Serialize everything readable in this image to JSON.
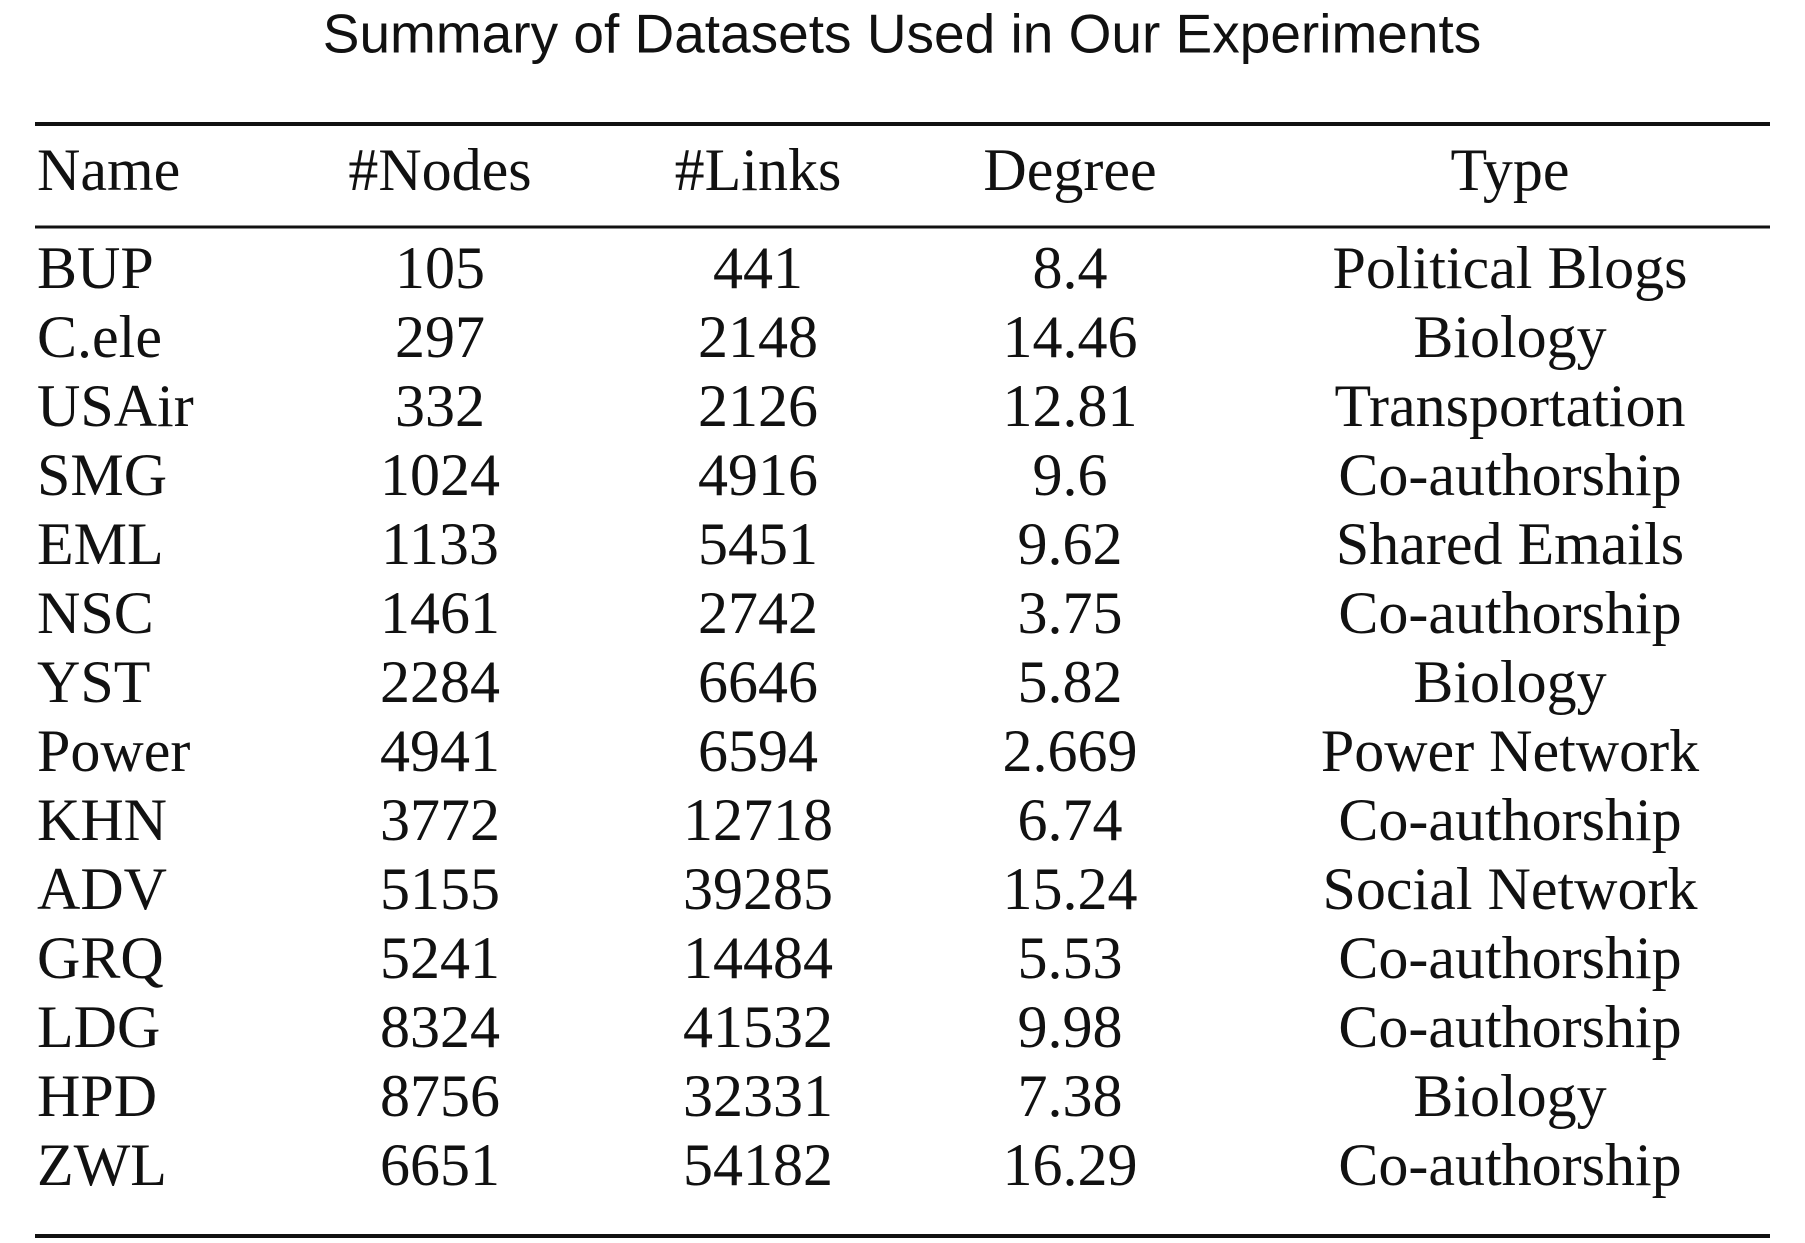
{
  "title": "Summary of Datasets Used in Our Experiments",
  "table": {
    "header": [
      "Name",
      "#Nodes",
      "#Links",
      "Degree",
      "Type"
    ],
    "rows": [
      [
        "BUP",
        "105",
        "441",
        "8.4",
        "Political Blogs"
      ],
      [
        "C.ele",
        "297",
        "2148",
        "14.46",
        "Biology"
      ],
      [
        "USAir",
        "332",
        "2126",
        "12.81",
        "Transportation"
      ],
      [
        "SMG",
        "1024",
        "4916",
        "9.6",
        "Co-authorship"
      ],
      [
        "EML",
        "1133",
        "5451",
        "9.62",
        "Shared Emails"
      ],
      [
        "NSC",
        "1461",
        "2742",
        "3.75",
        "Co-authorship"
      ],
      [
        "YST",
        "2284",
        "6646",
        "5.82",
        "Biology"
      ],
      [
        "Power",
        "4941",
        "6594",
        "2.669",
        "Power Network"
      ],
      [
        "KHN",
        "3772",
        "12718",
        "6.74",
        "Co-authorship"
      ],
      [
        "ADV",
        "5155",
        "39285",
        "15.24",
        "Social Network"
      ],
      [
        "GRQ",
        "5241",
        "14484",
        "5.53",
        "Co-authorship"
      ],
      [
        "LDG",
        "8324",
        "41532",
        "9.98",
        "Co-authorship"
      ],
      [
        "HPD",
        "8756",
        "32331",
        "7.38",
        "Biology"
      ],
      [
        "ZWL",
        "6651",
        "54182",
        "16.29",
        "Co-authorship"
      ]
    ]
  }
}
